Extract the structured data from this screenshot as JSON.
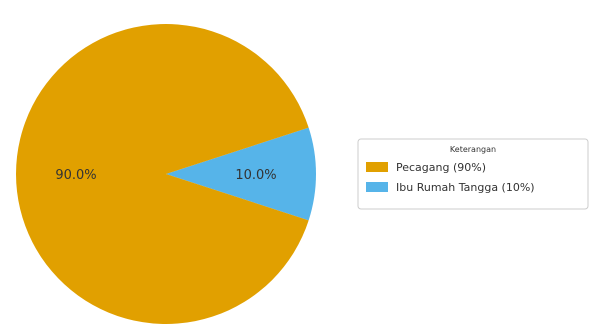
{
  "chart_data": {
    "type": "pie",
    "slices": [
      {
        "label": "Pecagang (90%)",
        "value": 90,
        "pct_label": "90.0%",
        "color": "#e1a000"
      },
      {
        "label": "Ibu Rumah Tangga (10%)",
        "value": 10,
        "pct_label": "10.0%",
        "color": "#56b4e9"
      }
    ],
    "legend": {
      "title": "Keterangan",
      "position": "right"
    }
  }
}
